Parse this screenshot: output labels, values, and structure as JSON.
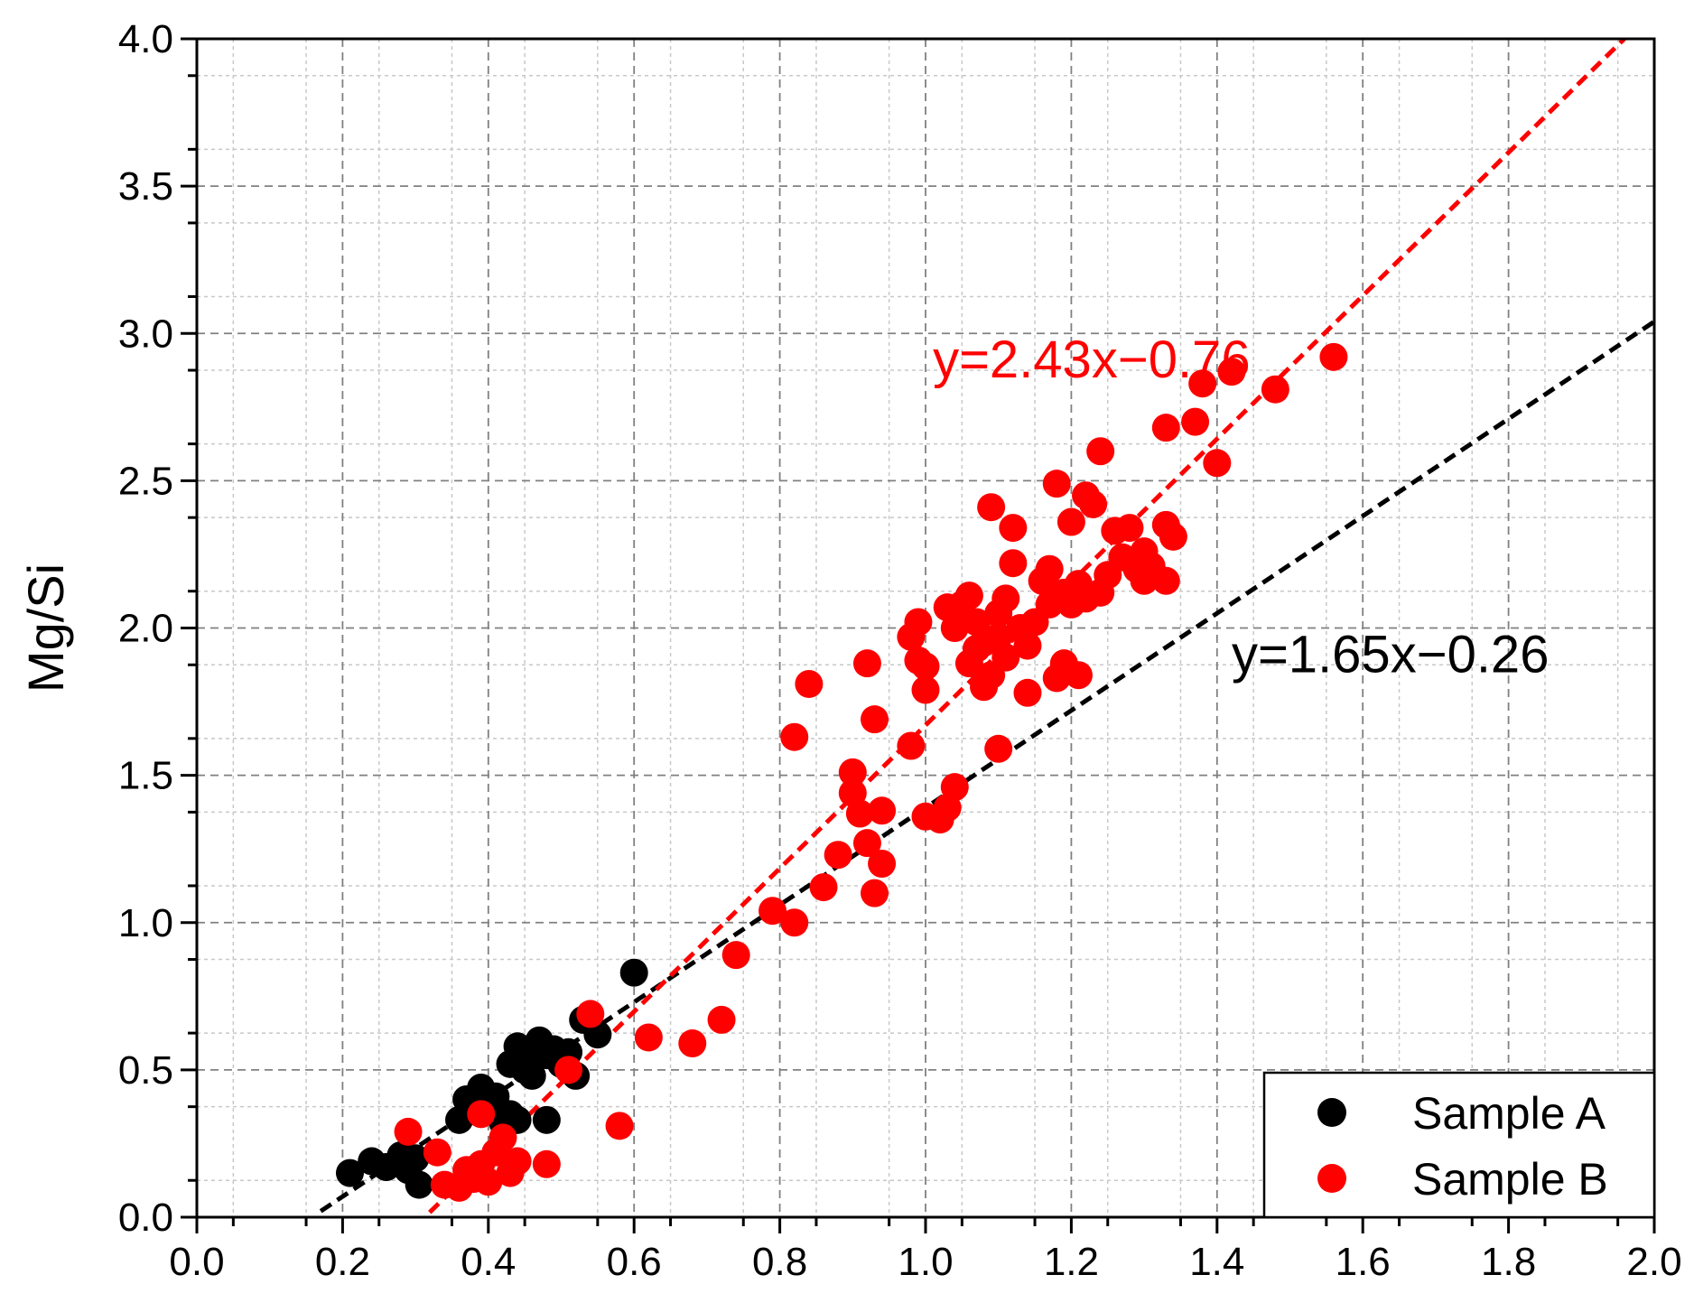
{
  "chart_data": {
    "type": "scatter",
    "title": "",
    "xlabel": "",
    "ylabel": "Mg/Si",
    "xlim": [
      0.0,
      2.0
    ],
    "ylim": [
      0.0,
      4.0
    ],
    "x_ticks": [
      "0.0",
      "0.2",
      "0.4",
      "0.6",
      "0.8",
      "1.0",
      "1.2",
      "1.4",
      "1.6",
      "1.8",
      "2.0"
    ],
    "y_ticks": [
      "0.0",
      "0.5",
      "1.0",
      "1.5",
      "2.0",
      "2.5",
      "3.0",
      "3.5",
      "4.0"
    ],
    "grid": true,
    "legend_position": "bottom-right",
    "series": [
      {
        "name": "Sample A",
        "color": "#000000",
        "points": [
          [
            0.21,
            0.15
          ],
          [
            0.24,
            0.19
          ],
          [
            0.26,
            0.17
          ],
          [
            0.28,
            0.21
          ],
          [
            0.29,
            0.16
          ],
          [
            0.3,
            0.2
          ],
          [
            0.305,
            0.11
          ],
          [
            0.36,
            0.33
          ],
          [
            0.37,
            0.4
          ],
          [
            0.38,
            0.36
          ],
          [
            0.39,
            0.44
          ],
          [
            0.4,
            0.38
          ],
          [
            0.41,
            0.41
          ],
          [
            0.42,
            0.32
          ],
          [
            0.43,
            0.35
          ],
          [
            0.44,
            0.33
          ],
          [
            0.43,
            0.52
          ],
          [
            0.45,
            0.5
          ],
          [
            0.46,
            0.56
          ],
          [
            0.44,
            0.58
          ],
          [
            0.47,
            0.6
          ],
          [
            0.48,
            0.55
          ],
          [
            0.49,
            0.57
          ],
          [
            0.46,
            0.48
          ],
          [
            0.5,
            0.52
          ],
          [
            0.48,
            0.33
          ],
          [
            0.51,
            0.56
          ],
          [
            0.52,
            0.48
          ],
          [
            0.53,
            0.67
          ],
          [
            0.55,
            0.62
          ],
          [
            0.6,
            0.83
          ]
        ]
      },
      {
        "name": "Sample B",
        "color": "#ff0000",
        "points": [
          [
            0.29,
            0.29
          ],
          [
            0.33,
            0.22
          ],
          [
            0.34,
            0.11
          ],
          [
            0.36,
            0.1
          ],
          [
            0.37,
            0.16
          ],
          [
            0.38,
            0.13
          ],
          [
            0.39,
            0.18
          ],
          [
            0.4,
            0.12
          ],
          [
            0.41,
            0.22
          ],
          [
            0.42,
            0.27
          ],
          [
            0.39,
            0.35
          ],
          [
            0.44,
            0.19
          ],
          [
            0.43,
            0.15
          ],
          [
            0.48,
            0.18
          ],
          [
            0.51,
            0.5
          ],
          [
            0.54,
            0.69
          ],
          [
            0.58,
            0.31
          ],
          [
            0.62,
            0.61
          ],
          [
            0.68,
            0.59
          ],
          [
            0.72,
            0.67
          ],
          [
            0.74,
            0.89
          ],
          [
            0.79,
            1.04
          ],
          [
            0.82,
            1.0
          ],
          [
            0.82,
            1.63
          ],
          [
            0.84,
            1.81
          ],
          [
            0.86,
            1.12
          ],
          [
            0.88,
            1.23
          ],
          [
            0.9,
            1.44
          ],
          [
            0.9,
            1.51
          ],
          [
            0.91,
            1.37
          ],
          [
            0.92,
            1.27
          ],
          [
            0.92,
            1.88
          ],
          [
            0.93,
            1.69
          ],
          [
            0.93,
            1.1
          ],
          [
            0.94,
            1.2
          ],
          [
            0.94,
            1.38
          ],
          [
            0.98,
            1.6
          ],
          [
            0.98,
            1.97
          ],
          [
            0.99,
            1.89
          ],
          [
            0.99,
            2.02
          ],
          [
            1.0,
            1.36
          ],
          [
            1.0,
            1.79
          ],
          [
            1.0,
            1.87
          ],
          [
            1.02,
            1.35
          ],
          [
            1.03,
            1.39
          ],
          [
            1.03,
            2.07
          ],
          [
            1.04,
            1.46
          ],
          [
            1.04,
            2.0
          ],
          [
            1.05,
            2.08
          ],
          [
            1.06,
            2.11
          ],
          [
            1.06,
            1.88
          ],
          [
            1.07,
            1.93
          ],
          [
            1.07,
            2.02
          ],
          [
            1.08,
            1.8
          ],
          [
            1.08,
            1.95
          ],
          [
            1.09,
            1.84
          ],
          [
            1.09,
            2.41
          ],
          [
            1.1,
            1.59
          ],
          [
            1.1,
            1.97
          ],
          [
            1.1,
            2.05
          ],
          [
            1.11,
            2.1
          ],
          [
            1.11,
            1.9
          ],
          [
            1.12,
            2.22
          ],
          [
            1.12,
            2.34
          ],
          [
            1.13,
            2.0
          ],
          [
            1.14,
            1.94
          ],
          [
            1.14,
            1.78
          ],
          [
            1.15,
            2.02
          ],
          [
            1.16,
            2.16
          ],
          [
            1.17,
            2.2
          ],
          [
            1.17,
            2.08
          ],
          [
            1.18,
            1.83
          ],
          [
            1.18,
            2.49
          ],
          [
            1.19,
            2.12
          ],
          [
            1.19,
            1.88
          ],
          [
            1.2,
            2.36
          ],
          [
            1.2,
            2.08
          ],
          [
            1.21,
            2.15
          ],
          [
            1.21,
            1.84
          ],
          [
            1.22,
            2.1
          ],
          [
            1.22,
            2.45
          ],
          [
            1.23,
            2.42
          ],
          [
            1.24,
            2.12
          ],
          [
            1.24,
            2.6
          ],
          [
            1.25,
            2.18
          ],
          [
            1.26,
            2.33
          ],
          [
            1.27,
            2.24
          ],
          [
            1.28,
            2.34
          ],
          [
            1.29,
            2.2
          ],
          [
            1.3,
            2.26
          ],
          [
            1.3,
            2.16
          ],
          [
            1.31,
            2.21
          ],
          [
            1.33,
            2.35
          ],
          [
            1.33,
            2.68
          ],
          [
            1.33,
            2.16
          ],
          [
            1.34,
            2.31
          ],
          [
            1.37,
            2.7
          ],
          [
            1.38,
            2.83
          ],
          [
            1.4,
            2.56
          ],
          [
            1.42,
            2.87
          ],
          [
            1.48,
            2.81
          ],
          [
            1.56,
            2.92
          ]
        ]
      }
    ],
    "fit_lines": [
      {
        "series": "Sample A",
        "label": "y=1.65x−0.26",
        "slope": 1.65,
        "intercept": -0.26,
        "x_range": [
          0.17,
          2.0
        ],
        "color": "#000000",
        "label_at": [
          1.42,
          1.85
        ]
      },
      {
        "series": "Sample B",
        "label": "y=2.43x−0.76",
        "slope": 2.43,
        "intercept": -0.76,
        "x_range": [
          0.3,
          1.96
        ],
        "color": "#ff0000",
        "label_at": [
          1.01,
          2.85
        ]
      }
    ]
  }
}
